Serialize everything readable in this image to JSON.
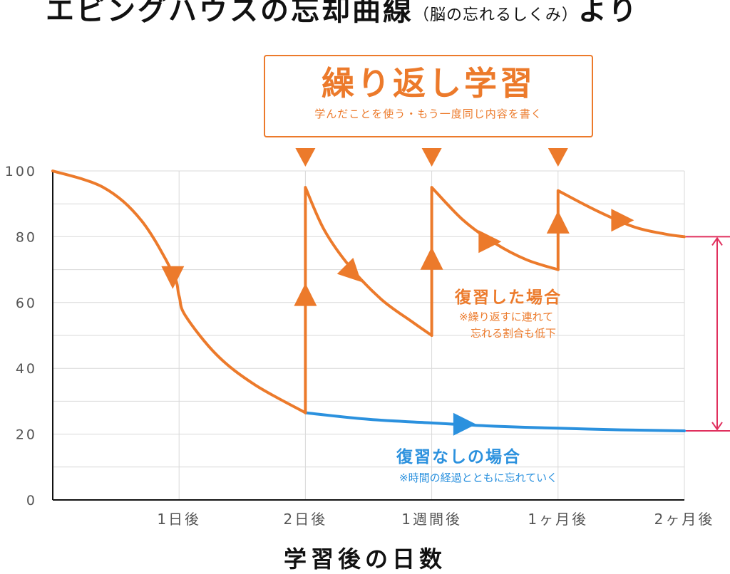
{
  "title": {
    "main": "エビングハウスの忘却曲線",
    "sub": "（脳の忘れるしくみ）",
    "tail": "より"
  },
  "callout": {
    "heading": "繰り返し学習",
    "note": "学んだことを使う・もう一度同じ内容を書く"
  },
  "annotations": {
    "with_review": {
      "title": "復習した場合",
      "note_lines": [
        "※繰り返すに連れて",
        "忘れる割合も低下"
      ]
    },
    "no_review": {
      "title": "復習なしの場合",
      "note": "※時間の経過とともに忘れていく"
    }
  },
  "colors": {
    "with_review": "#ec7a2b",
    "no_review": "#2b91de",
    "bracket": "#e0305e",
    "grid": "#d9d9d9",
    "axis": "#111111",
    "tick_text": "#555555"
  },
  "chart_data": {
    "type": "line",
    "xlabel": "学習後の日数",
    "ylabel": "",
    "ylim": [
      0,
      100
    ],
    "xlim": [
      0,
      5
    ],
    "y_ticks": [
      0,
      20,
      40,
      60,
      80,
      100
    ],
    "x_ticks": [
      {
        "label": "1日後",
        "x": 1
      },
      {
        "label": "2日後",
        "x": 2
      },
      {
        "label": "1週間後",
        "x": 3
      },
      {
        "label": "1ヶ月後",
        "x": 4
      },
      {
        "label": "2ヶ月後",
        "x": 5
      }
    ],
    "grid": true,
    "review_points": [
      2,
      3,
      4
    ],
    "series": [
      {
        "key": "with_review",
        "segments": [
          {
            "points": [
              [
                0,
                100
              ],
              [
                0.4,
                95
              ],
              [
                0.7,
                85
              ],
              [
                0.95,
                69
              ],
              [
                1.0,
                62
              ],
              [
                1.05,
                56
              ],
              [
                1.3,
                44
              ],
              [
                1.6,
                35
              ],
              [
                2.0,
                26.5
              ]
            ]
          },
          {
            "points": [
              [
                2.0,
                26.5
              ],
              [
                2.0,
                95
              ],
              [
                2.15,
                82
              ],
              [
                2.35,
                71
              ],
              [
                2.6,
                61
              ],
              [
                2.85,
                54
              ],
              [
                3.0,
                50
              ]
            ]
          },
          {
            "points": [
              [
                3.0,
                50
              ],
              [
                3.0,
                95
              ],
              [
                3.25,
                85
              ],
              [
                3.5,
                78
              ],
              [
                3.75,
                73
              ],
              [
                4.0,
                70
              ]
            ]
          },
          {
            "points": [
              [
                4.0,
                70
              ],
              [
                4.0,
                94
              ],
              [
                4.3,
                88
              ],
              [
                4.6,
                83
              ],
              [
                4.85,
                80.8
              ],
              [
                5.0,
                80
              ]
            ]
          }
        ]
      },
      {
        "key": "no_review",
        "segments": [
          {
            "points": [
              [
                2.0,
                26.5
              ],
              [
                2.5,
                24.5
              ],
              [
                3.0,
                23.4
              ],
              [
                3.5,
                22.4
              ],
              [
                4.0,
                21.8
              ],
              [
                4.5,
                21.3
              ],
              [
                5.0,
                21
              ]
            ]
          }
        ]
      }
    ],
    "direction_arrows": [
      {
        "series": "with_review",
        "x": 0.95,
        "y": 68,
        "dir": "down"
      },
      {
        "series": "with_review",
        "x": 2.0,
        "y": 62,
        "dir": "up"
      },
      {
        "series": "with_review",
        "x": 2.37,
        "y": 69,
        "dir": "down-right"
      },
      {
        "series": "with_review",
        "x": 3.0,
        "y": 73,
        "dir": "up"
      },
      {
        "series": "with_review",
        "x": 3.45,
        "y": 78.5,
        "dir": "right"
      },
      {
        "series": "with_review",
        "x": 4.0,
        "y": 84,
        "dir": "up"
      },
      {
        "series": "with_review",
        "x": 4.5,
        "y": 85,
        "dir": "right"
      },
      {
        "series": "no_review",
        "x": 3.25,
        "y": 23,
        "dir": "right"
      }
    ]
  }
}
